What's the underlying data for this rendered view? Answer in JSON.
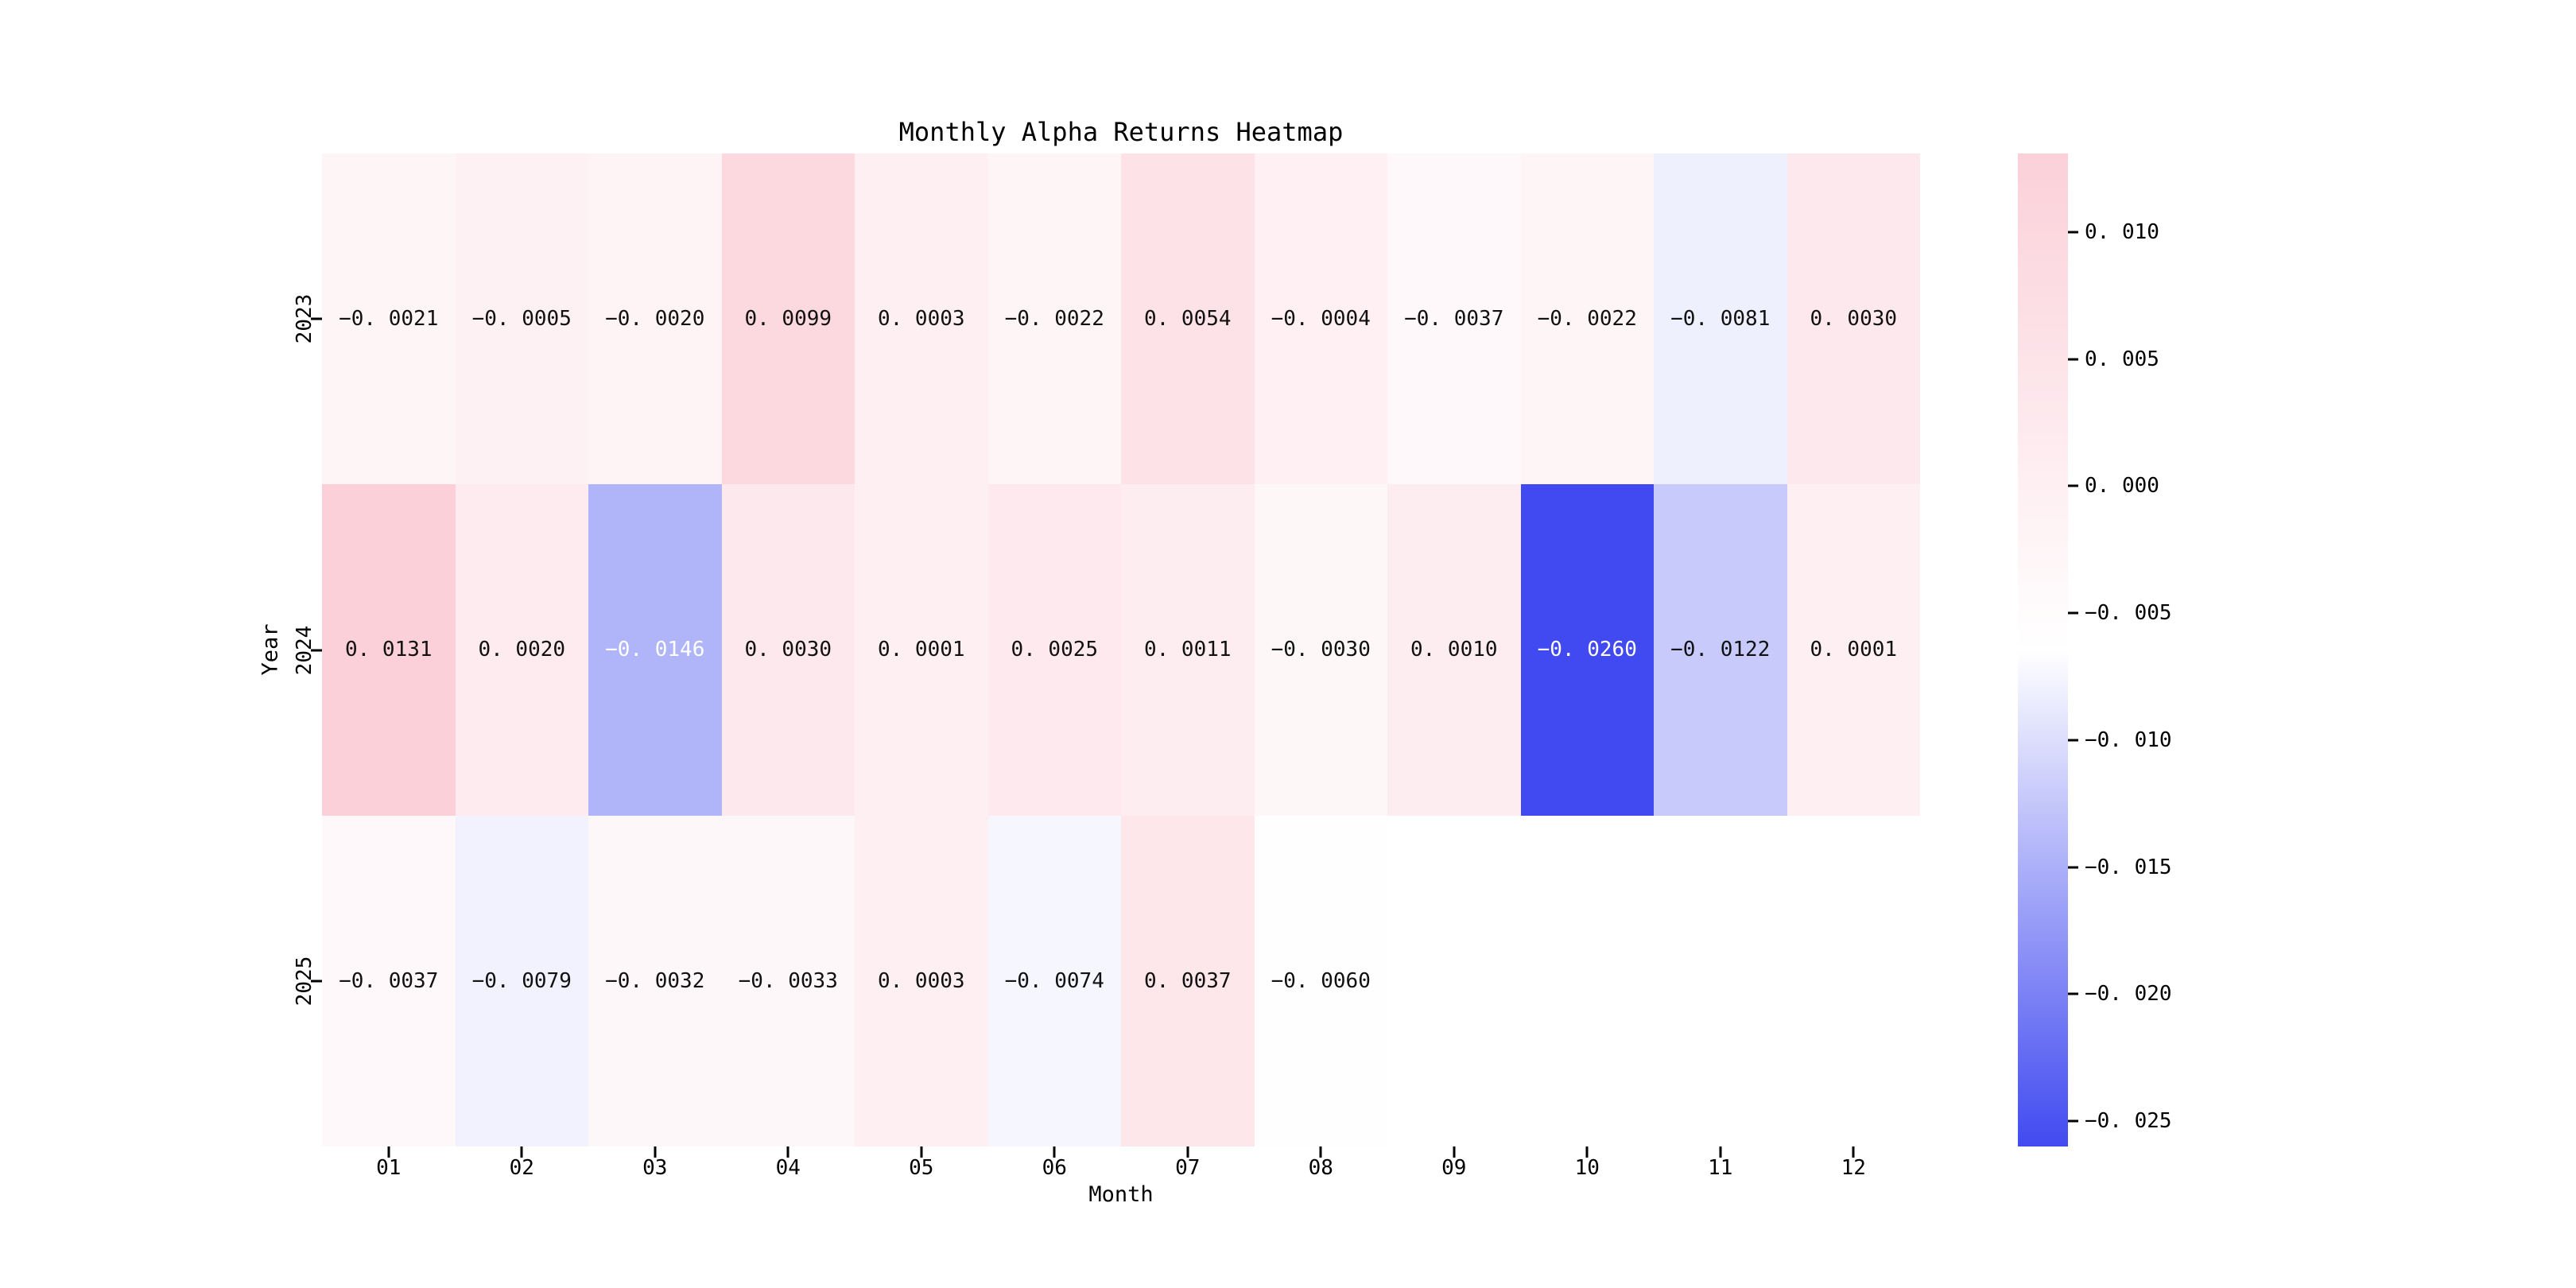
{
  "chart": {
    "title": "Monthly Alpha Returns Heatmap",
    "xlabel": "Month",
    "ylabel": "Year"
  },
  "chart_data": {
    "type": "heatmap",
    "title": "Monthly Alpha Returns Heatmap",
    "xlabel": "Month",
    "ylabel": "Year",
    "x_categories": [
      "01",
      "02",
      "03",
      "04",
      "05",
      "06",
      "07",
      "08",
      "09",
      "10",
      "11",
      "12"
    ],
    "y_categories": [
      "2023",
      "2024",
      "2025"
    ],
    "series": [
      {
        "name": "2023",
        "values": [
          -0.0021,
          -0.0005,
          -0.002,
          0.0099,
          0.0003,
          -0.0022,
          0.0054,
          -0.0004,
          -0.0037,
          -0.0022,
          -0.0081,
          0.003
        ]
      },
      {
        "name": "2024",
        "values": [
          0.0131,
          0.002,
          -0.0146,
          0.003,
          0.0001,
          0.0025,
          0.0011,
          -0.003,
          0.001,
          -0.026,
          -0.0122,
          0.0001
        ]
      },
      {
        "name": "2025",
        "values": [
          -0.0037,
          -0.0079,
          -0.0032,
          -0.0033,
          0.0003,
          -0.0074,
          0.0037,
          -0.006,
          null,
          null,
          null,
          null
        ]
      }
    ],
    "vmin": -0.026,
    "vmax": 0.0131,
    "value_format_decimals": 4,
    "annotated": true,
    "grid": false,
    "legend_position": "colorbar-right",
    "colorbar_ticks": [
      0.01,
      0.005,
      0.0,
      -0.005,
      -0.01,
      -0.015,
      -0.02,
      -0.025
    ],
    "colorbar_tick_decimals": 3,
    "colors": {
      "low": "#414af0",
      "mid": "#ffffff",
      "high": "#fbd0d9",
      "annotation_dark": "#111111",
      "annotation_light": "#ffffff",
      "white_text_threshold": 0.31
    }
  }
}
